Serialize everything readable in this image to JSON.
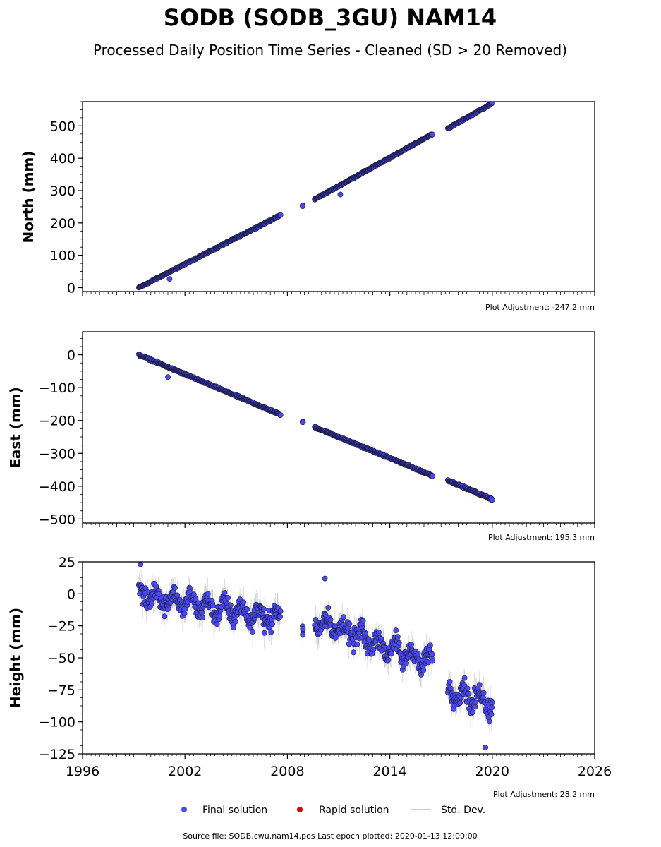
{
  "title": "SODB (SODB_3GU) NAM14",
  "subtitle": "Processed Daily Position Time Series - Cleaned (SD > 20 Removed)",
  "legend": {
    "final": {
      "label": "Final solution",
      "color": "#4a4af0"
    },
    "rapid": {
      "label": "Rapid solution",
      "color": "#e00000"
    },
    "stddev": {
      "label": "Std. Dev.",
      "color": "#bbbbbb"
    }
  },
  "footer": "Source file: SODB.cwu.nam14.pos  Last epoch plotted: 2020-01-13 12:00:00",
  "chart_data": [
    {
      "type": "scatter",
      "ylabel": "North (mm)",
      "adjustment": "Plot Adjustment: -247.2 mm",
      "xlim": [
        1996,
        2026
      ],
      "ylim": [
        -12,
        575
      ],
      "yticks": [
        0,
        100,
        200,
        300,
        400,
        500
      ],
      "ytick_labels": [
        "0",
        "100",
        "200",
        "300",
        "400",
        "500"
      ],
      "grid": false,
      "segments": [
        {
          "x0": 1999.3,
          "x1": 2007.6,
          "y0": 0,
          "y1": 224
        },
        {
          "x0": 2008.9,
          "x1": 2008.9,
          "y0": 254,
          "y1": 254
        },
        {
          "x0": 2009.6,
          "x1": 2016.5,
          "y0": 273,
          "y1": 475
        },
        {
          "x0": 2017.4,
          "x1": 2020.0,
          "y0": 492,
          "y1": 570
        }
      ],
      "outliers": [
        {
          "x": 2001.1,
          "y": 27
        },
        {
          "x": 2011.1,
          "y": 288
        }
      ],
      "noise_amplitude": 3
    },
    {
      "type": "scatter",
      "ylabel": "East (mm)",
      "adjustment": "Plot Adjustment: 195.3 mm",
      "xlim": [
        1996,
        2026
      ],
      "ylim": [
        -512,
        70
      ],
      "yticks": [
        -500,
        -400,
        -300,
        -200,
        -100,
        0
      ],
      "ytick_labels": [
        "−500",
        "−400",
        "−300",
        "−200",
        "−100",
        "0"
      ],
      "grid": false,
      "segments": [
        {
          "x0": 1999.3,
          "x1": 2007.6,
          "y0": 0,
          "y1": -182
        },
        {
          "x0": 2008.9,
          "x1": 2008.9,
          "y0": -205,
          "y1": -205
        },
        {
          "x0": 2009.6,
          "x1": 2016.5,
          "y0": -220,
          "y1": -368
        },
        {
          "x0": 2017.4,
          "x1": 2020.0,
          "y0": -382,
          "y1": -440
        }
      ],
      "outliers": [
        {
          "x": 2001.0,
          "y": -68
        }
      ],
      "noise_amplitude": 4
    },
    {
      "type": "scatter",
      "ylabel": "Height (mm)",
      "adjustment": "Plot Adjustment: 28.2 mm",
      "xlim": [
        1996,
        2026
      ],
      "ylim": [
        -125,
        25
      ],
      "yticks": [
        -125,
        -100,
        -75,
        -50,
        -25,
        0,
        25
      ],
      "ytick_labels": [
        "−125",
        "−100",
        "−75",
        "−50",
        "−25",
        "0",
        "25"
      ],
      "xticks": [
        1996,
        2002,
        2008,
        2014,
        2020,
        2026
      ],
      "xtick_labels": [
        "1996",
        "2002",
        "2008",
        "2014",
        "2020",
        "2026"
      ],
      "grid": false,
      "segments": [
        {
          "x0": 1999.3,
          "x1": 2007.6,
          "y0": 0,
          "y1": -20
        },
        {
          "x0": 2008.9,
          "x1": 2008.9,
          "y0": -25,
          "y1": -25
        },
        {
          "x0": 2009.6,
          "x1": 2016.5,
          "y0": -20,
          "y1": -55
        },
        {
          "x0": 2017.4,
          "x1": 2020.0,
          "y0": -75,
          "y1": -85
        }
      ],
      "outliers": [
        {
          "x": 1999.4,
          "y": 23
        },
        {
          "x": 2010.2,
          "y": 12
        },
        {
          "x": 2019.6,
          "y": -120
        }
      ],
      "noise_amplitude": 12
    }
  ]
}
